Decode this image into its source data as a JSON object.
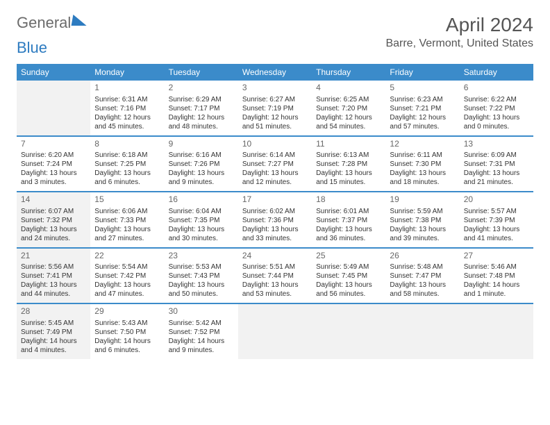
{
  "logo": {
    "text1": "General",
    "text2": "Blue"
  },
  "title": "April 2024",
  "location": "Barre, Vermont, United States",
  "colors": {
    "header_bg": "#3b8bca",
    "header_text": "#ffffff",
    "shaded_bg": "#f2f2f2",
    "text": "#333333",
    "logo_gray": "#6b6b6b",
    "logo_blue": "#2d7bc0"
  },
  "dayNames": [
    "Sunday",
    "Monday",
    "Tuesday",
    "Wednesday",
    "Thursday",
    "Friday",
    "Saturday"
  ],
  "weeks": [
    [
      {
        "shaded": true
      },
      {
        "num": "1",
        "sunrise": "Sunrise: 6:31 AM",
        "sunset": "Sunset: 7:16 PM",
        "daylight1": "Daylight: 12 hours",
        "daylight2": "and 45 minutes."
      },
      {
        "num": "2",
        "sunrise": "Sunrise: 6:29 AM",
        "sunset": "Sunset: 7:17 PM",
        "daylight1": "Daylight: 12 hours",
        "daylight2": "and 48 minutes."
      },
      {
        "num": "3",
        "sunrise": "Sunrise: 6:27 AM",
        "sunset": "Sunset: 7:19 PM",
        "daylight1": "Daylight: 12 hours",
        "daylight2": "and 51 minutes."
      },
      {
        "num": "4",
        "sunrise": "Sunrise: 6:25 AM",
        "sunset": "Sunset: 7:20 PM",
        "daylight1": "Daylight: 12 hours",
        "daylight2": "and 54 minutes."
      },
      {
        "num": "5",
        "sunrise": "Sunrise: 6:23 AM",
        "sunset": "Sunset: 7:21 PM",
        "daylight1": "Daylight: 12 hours",
        "daylight2": "and 57 minutes."
      },
      {
        "num": "6",
        "sunrise": "Sunrise: 6:22 AM",
        "sunset": "Sunset: 7:22 PM",
        "daylight1": "Daylight: 13 hours",
        "daylight2": "and 0 minutes."
      }
    ],
    [
      {
        "num": "7",
        "sunrise": "Sunrise: 6:20 AM",
        "sunset": "Sunset: 7:24 PM",
        "daylight1": "Daylight: 13 hours",
        "daylight2": "and 3 minutes."
      },
      {
        "num": "8",
        "sunrise": "Sunrise: 6:18 AM",
        "sunset": "Sunset: 7:25 PM",
        "daylight1": "Daylight: 13 hours",
        "daylight2": "and 6 minutes."
      },
      {
        "num": "9",
        "sunrise": "Sunrise: 6:16 AM",
        "sunset": "Sunset: 7:26 PM",
        "daylight1": "Daylight: 13 hours",
        "daylight2": "and 9 minutes."
      },
      {
        "num": "10",
        "sunrise": "Sunrise: 6:14 AM",
        "sunset": "Sunset: 7:27 PM",
        "daylight1": "Daylight: 13 hours",
        "daylight2": "and 12 minutes."
      },
      {
        "num": "11",
        "sunrise": "Sunrise: 6:13 AM",
        "sunset": "Sunset: 7:28 PM",
        "daylight1": "Daylight: 13 hours",
        "daylight2": "and 15 minutes."
      },
      {
        "num": "12",
        "sunrise": "Sunrise: 6:11 AM",
        "sunset": "Sunset: 7:30 PM",
        "daylight1": "Daylight: 13 hours",
        "daylight2": "and 18 minutes."
      },
      {
        "num": "13",
        "sunrise": "Sunrise: 6:09 AM",
        "sunset": "Sunset: 7:31 PM",
        "daylight1": "Daylight: 13 hours",
        "daylight2": "and 21 minutes."
      }
    ],
    [
      {
        "num": "14",
        "shaded": true,
        "sunrise": "Sunrise: 6:07 AM",
        "sunset": "Sunset: 7:32 PM",
        "daylight1": "Daylight: 13 hours",
        "daylight2": "and 24 minutes."
      },
      {
        "num": "15",
        "sunrise": "Sunrise: 6:06 AM",
        "sunset": "Sunset: 7:33 PM",
        "daylight1": "Daylight: 13 hours",
        "daylight2": "and 27 minutes."
      },
      {
        "num": "16",
        "sunrise": "Sunrise: 6:04 AM",
        "sunset": "Sunset: 7:35 PM",
        "daylight1": "Daylight: 13 hours",
        "daylight2": "and 30 minutes."
      },
      {
        "num": "17",
        "sunrise": "Sunrise: 6:02 AM",
        "sunset": "Sunset: 7:36 PM",
        "daylight1": "Daylight: 13 hours",
        "daylight2": "and 33 minutes."
      },
      {
        "num": "18",
        "sunrise": "Sunrise: 6:01 AM",
        "sunset": "Sunset: 7:37 PM",
        "daylight1": "Daylight: 13 hours",
        "daylight2": "and 36 minutes."
      },
      {
        "num": "19",
        "sunrise": "Sunrise: 5:59 AM",
        "sunset": "Sunset: 7:38 PM",
        "daylight1": "Daylight: 13 hours",
        "daylight2": "and 39 minutes."
      },
      {
        "num": "20",
        "sunrise": "Sunrise: 5:57 AM",
        "sunset": "Sunset: 7:39 PM",
        "daylight1": "Daylight: 13 hours",
        "daylight2": "and 41 minutes."
      }
    ],
    [
      {
        "num": "21",
        "shaded": true,
        "sunrise": "Sunrise: 5:56 AM",
        "sunset": "Sunset: 7:41 PM",
        "daylight1": "Daylight: 13 hours",
        "daylight2": "and 44 minutes."
      },
      {
        "num": "22",
        "sunrise": "Sunrise: 5:54 AM",
        "sunset": "Sunset: 7:42 PM",
        "daylight1": "Daylight: 13 hours",
        "daylight2": "and 47 minutes."
      },
      {
        "num": "23",
        "sunrise": "Sunrise: 5:53 AM",
        "sunset": "Sunset: 7:43 PM",
        "daylight1": "Daylight: 13 hours",
        "daylight2": "and 50 minutes."
      },
      {
        "num": "24",
        "sunrise": "Sunrise: 5:51 AM",
        "sunset": "Sunset: 7:44 PM",
        "daylight1": "Daylight: 13 hours",
        "daylight2": "and 53 minutes."
      },
      {
        "num": "25",
        "sunrise": "Sunrise: 5:49 AM",
        "sunset": "Sunset: 7:45 PM",
        "daylight1": "Daylight: 13 hours",
        "daylight2": "and 56 minutes."
      },
      {
        "num": "26",
        "sunrise": "Sunrise: 5:48 AM",
        "sunset": "Sunset: 7:47 PM",
        "daylight1": "Daylight: 13 hours",
        "daylight2": "and 58 minutes."
      },
      {
        "num": "27",
        "sunrise": "Sunrise: 5:46 AM",
        "sunset": "Sunset: 7:48 PM",
        "daylight1": "Daylight: 14 hours",
        "daylight2": "and 1 minute."
      }
    ],
    [
      {
        "num": "28",
        "shaded": true,
        "sunrise": "Sunrise: 5:45 AM",
        "sunset": "Sunset: 7:49 PM",
        "daylight1": "Daylight: 14 hours",
        "daylight2": "and 4 minutes."
      },
      {
        "num": "29",
        "sunrise": "Sunrise: 5:43 AM",
        "sunset": "Sunset: 7:50 PM",
        "daylight1": "Daylight: 14 hours",
        "daylight2": "and 6 minutes."
      },
      {
        "num": "30",
        "sunrise": "Sunrise: 5:42 AM",
        "sunset": "Sunset: 7:52 PM",
        "daylight1": "Daylight: 14 hours",
        "daylight2": "and 9 minutes."
      },
      {
        "shaded": true
      },
      {
        "shaded": true
      },
      {
        "shaded": true
      },
      {
        "shaded": true
      }
    ]
  ]
}
